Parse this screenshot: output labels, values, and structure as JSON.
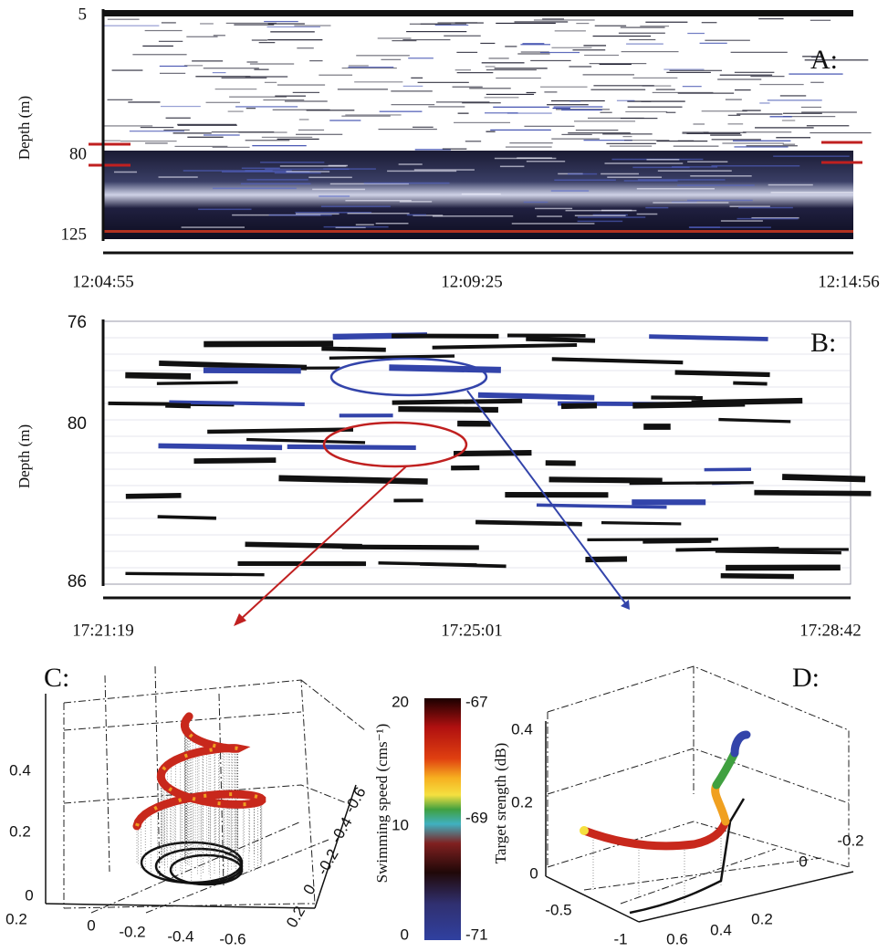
{
  "panels": [
    {
      "label": "A:",
      "y_axis_label": "Depth (m)",
      "yticks": [
        "5",
        "80",
        "125"
      ],
      "xticks": [
        "12:04:55",
        "12:09:25",
        "12:14:56"
      ]
    },
    {
      "label": "B:",
      "y_axis_label": "Depth (m)",
      "yticks": [
        "76",
        "80",
        "86"
      ],
      "xticks": [
        "17:21:19",
        "17:25:01",
        "17:28:42"
      ]
    },
    {
      "label": "C:",
      "zticks": [
        "0.4",
        "0.2",
        "0"
      ],
      "xticks": [
        "0.2",
        "0",
        "-0.2",
        "-0.4",
        "-0.6"
      ],
      "yticks": [
        "-0.6",
        "-0.4",
        "-0.2",
        "0",
        "0.2"
      ]
    },
    {
      "label": "D:",
      "zticks": [
        "0.4",
        "0.2",
        "0"
      ],
      "xticks": [
        "-0.5",
        "-1"
      ],
      "yticks": [
        "0.6",
        "0.4",
        "0.2",
        "0",
        "-0.2"
      ]
    }
  ],
  "colorbar": {
    "left_label": "Swimming speed (cms⁻¹)",
    "left_ticks": [
      "20",
      "10",
      "0"
    ],
    "right_label": "Target srength (dB)",
    "right_ticks": [
      "-67",
      "-69",
      "-71"
    ]
  }
}
